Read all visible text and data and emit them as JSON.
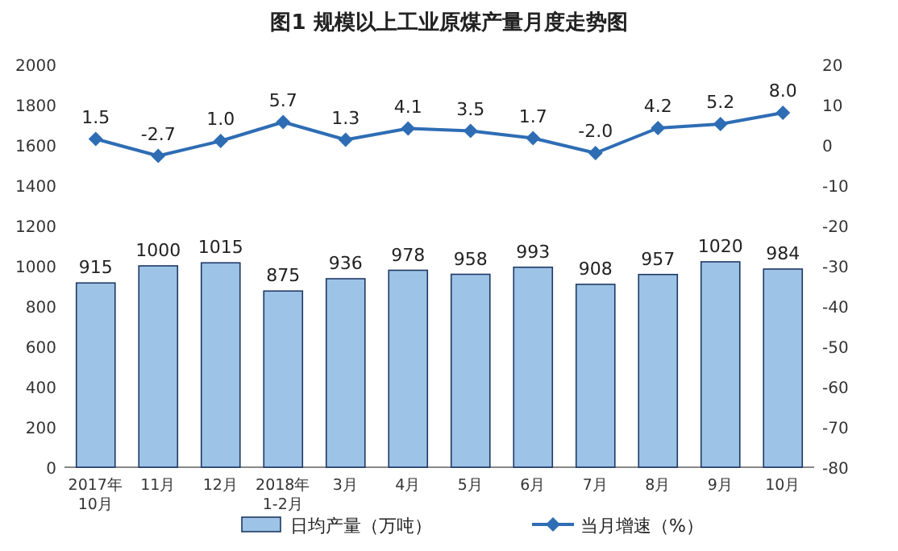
{
  "chart_data": {
    "type": "bar",
    "title": "图1  规模以上工业原煤产量月度走势图",
    "categories": [
      "2017年\n10月",
      "11月",
      "12月",
      "2018年\n1-2月",
      "3月",
      "4月",
      "5月",
      "6月",
      "7月",
      "8月",
      "9月",
      "10月"
    ],
    "series": [
      {
        "name": "日均产量（万吨）",
        "color": "#9dc3e6",
        "values": [
          915,
          1000,
          1015,
          875,
          936,
          978,
          958,
          993,
          908,
          957,
          1020,
          984
        ]
      },
      {
        "name": "当月增速（%）",
        "type": "line",
        "axis": "y2",
        "color": "#2e6db4",
        "marker": "diamond",
        "values": [
          1.5,
          -2.7,
          1.0,
          5.7,
          1.3,
          4.1,
          3.5,
          1.7,
          -2.0,
          4.2,
          5.2,
          8.0
        ],
        "value_labels": [
          "1.5",
          "-2.7",
          "1.0",
          "5.7",
          "1.3",
          "4.1",
          "3.5",
          "1.7",
          "-2.0",
          "4.2",
          "5.2",
          "8.0"
        ]
      }
    ],
    "ylim": [
      0,
      2000
    ],
    "yticks": [
      0,
      200,
      400,
      600,
      800,
      1000,
      1200,
      1400,
      1600,
      1800,
      2000
    ],
    "y2lim": [
      -80,
      20
    ],
    "y2ticks": [
      -80,
      -70,
      -60,
      -50,
      -40,
      -30,
      -20,
      -10,
      0,
      10,
      20
    ],
    "data_labels": true,
    "legend": "bottom"
  }
}
